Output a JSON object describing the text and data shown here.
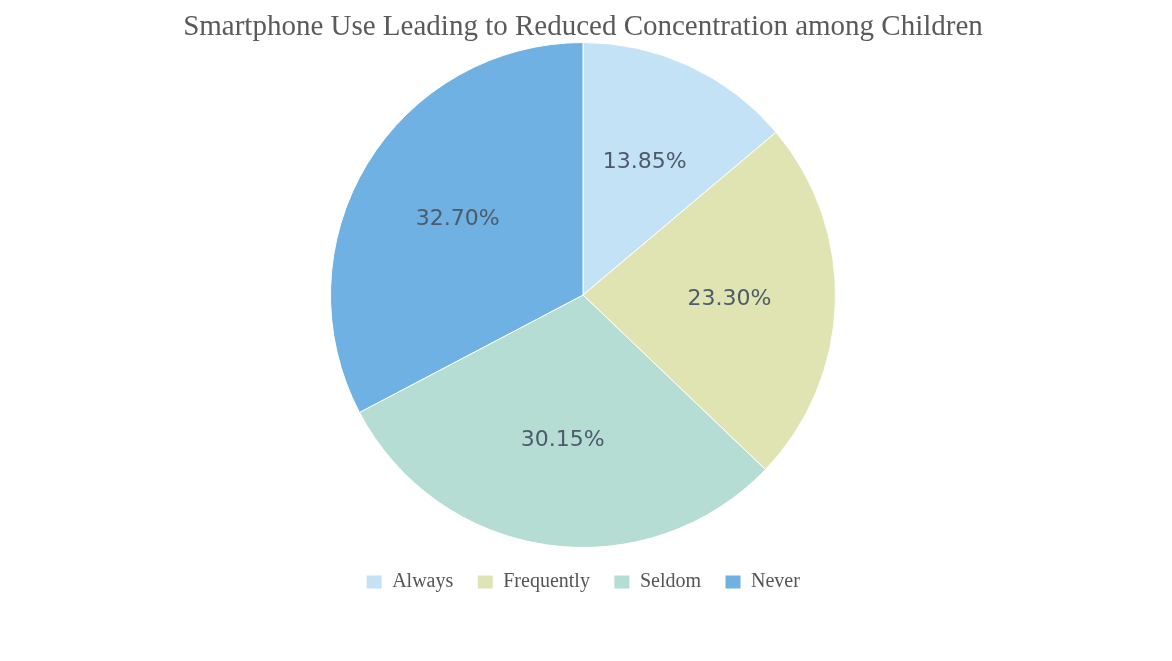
{
  "chart_data": {
    "type": "pie",
    "title": "Smartphone Use Leading to Reduced Concentration among Children",
    "categories": [
      "Always",
      "Frequently",
      "Seldom",
      "Never"
    ],
    "values": [
      13.85,
      23.3,
      30.15,
      32.7
    ],
    "value_labels": [
      "13.85%",
      "23.30%",
      "30.15%",
      "32.70%"
    ],
    "colors": [
      "#c3e2f6",
      "#dfe4b2",
      "#b6ddd4",
      "#6fb1e2"
    ],
    "legend": "bottom"
  }
}
